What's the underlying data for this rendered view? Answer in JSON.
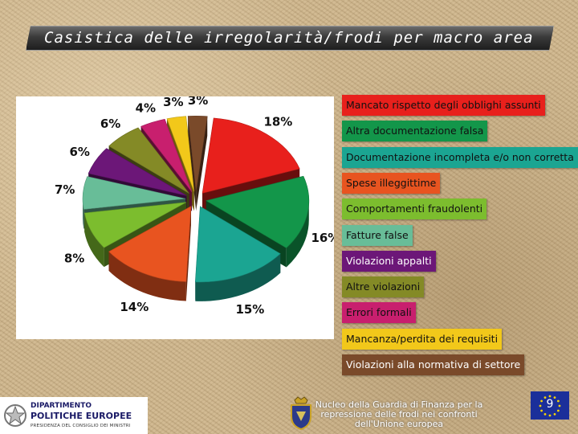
{
  "title": "Casistica delle irregolarità/frodi per macro area",
  "chart_data": {
    "type": "pie",
    "title": "",
    "series": [
      {
        "label": "Mancato rispetto degli obblighi assunti",
        "value": 18,
        "color": "#e8201c"
      },
      {
        "label": "Altra documentazione falsa",
        "value": 16,
        "color": "#13964a"
      },
      {
        "label": "Documentazione incompleta e/o non corretta",
        "value": 15,
        "color": "#1ba592"
      },
      {
        "label": "Spese illeggittime",
        "value": 14,
        "color": "#e85420"
      },
      {
        "label": "Comportamenti fraudolenti",
        "value": 8,
        "color": "#7cbd2e"
      },
      {
        "label": "Fatture false",
        "value": 7,
        "color": "#68bd98"
      },
      {
        "label": "Violazioni appalti",
        "value": 6,
        "color": "#6c1778"
      },
      {
        "label": "Altre violazioni",
        "value": 6,
        "color": "#848a26"
      },
      {
        "label": "Errori formali",
        "value": 4,
        "color": "#c81f6e"
      },
      {
        "label": "Mancanza/perdita dei requisiti",
        "value": 3,
        "color": "#f2c81a"
      },
      {
        "label": "Violazioni alla normativa di settore",
        "value": 3,
        "color": "#7a4a2a"
      }
    ],
    "value_labels": [
      "18%",
      "16%",
      "15%",
      "14%",
      "8%",
      "7%",
      "6%",
      "6%",
      "4%",
      "3%",
      "3%"
    ]
  },
  "footer": {
    "department_line1": "DIPARTIMENTO",
    "department_line2": "POLITICHE EUROPEE",
    "department_line3": "PRESIDENZA DEL CONSIGLIO DEI MINISTRI",
    "center_text": "Nucleo della Guardia di Finanza per la repressione delle frodi nei confronti dell'Unione europea",
    "page_number": "9"
  }
}
